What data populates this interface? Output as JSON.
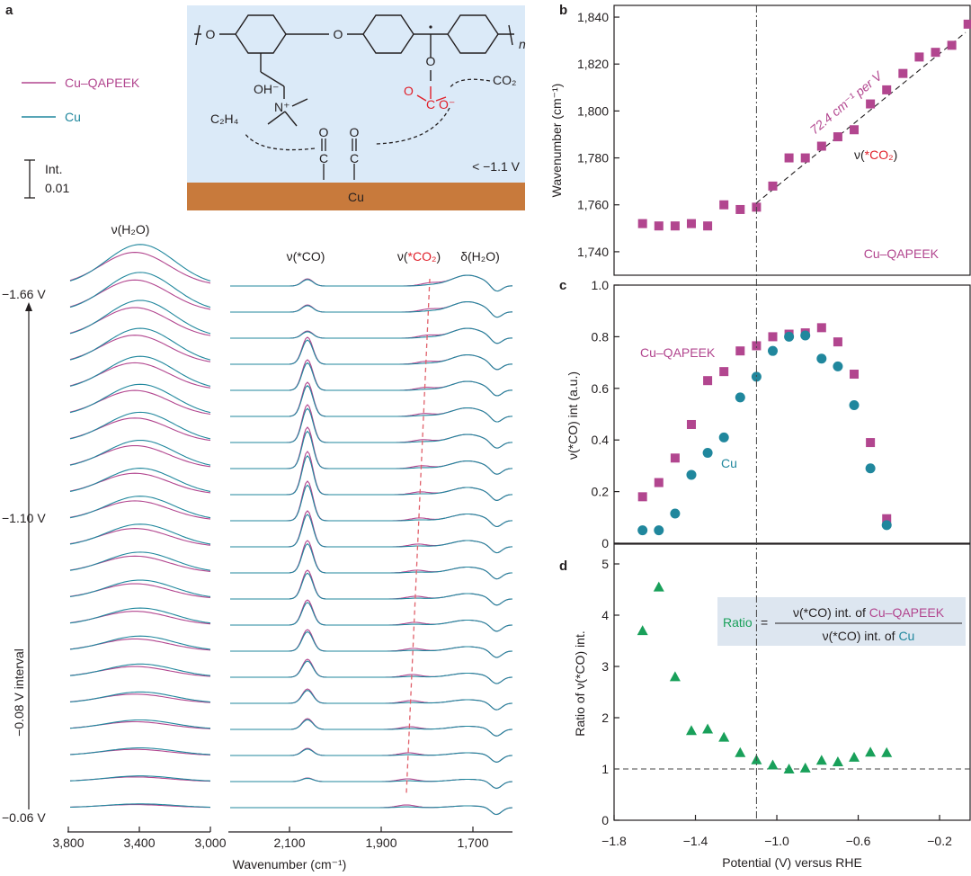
{
  "colors": {
    "cu_qapeek": "#b2468f",
    "cu": "#20879d",
    "ratio": "#19a05a",
    "co2_red": "#e0202a",
    "dashed": "#e0606a",
    "schematic_bg": "#dbeaf8",
    "electrode": "#c87a3c",
    "ink": "#231f20",
    "ratio_box_bg": "#dde6f0"
  },
  "panel_labels": {
    "a": "a",
    "b": "b",
    "c": "c",
    "d": "d"
  },
  "panel_a": {
    "legend": [
      "Cu–QAPEEK",
      "Cu"
    ],
    "scale_bar_label": "Int.",
    "scale_bar_value": "0.01",
    "potential_labels": [
      "−1.66 V",
      "−1.10 V",
      "−0.06 V"
    ],
    "interval_label": "−0.08 V interval",
    "xlabel": "Wavenumber (cm⁻¹)",
    "left_ticks": [
      "3,800",
      "3,400",
      "3,000"
    ],
    "right_ticks": [
      "2,100",
      "1,900",
      "1,700"
    ],
    "bands": {
      "water": "ν(H₂O)",
      "co": "ν(*CO)",
      "co2_prefix": "ν(",
      "co2_species": "*CO₂",
      "co2_suffix": ")",
      "bend": "δ(H₂O)"
    },
    "spectra_count": 21,
    "schematic": {
      "oh": "OH⁻",
      "nplus": "N⁺",
      "c2h4": "C₂H₄",
      "co2": "CO₂",
      "n": "n",
      "potential": "< −1.1 V",
      "electrode": "Cu",
      "o": "O",
      "c": "C",
      "ominus": "O⁻"
    }
  },
  "chart_data": [
    {
      "panel": "b",
      "type": "scatter",
      "title": "",
      "xlabel": "",
      "ylabel": "Wavenumber (cm⁻¹)",
      "xlim": [
        -1.8,
        -0.05
      ],
      "ylim": [
        1730,
        1845
      ],
      "yticks": [
        "1,740",
        "1,760",
        "1,780",
        "1,800",
        "1,820",
        "1,840"
      ],
      "series": [
        {
          "name": "Cu–QAPEEK",
          "x": [
            -1.66,
            -1.58,
            -1.5,
            -1.42,
            -1.34,
            -1.26,
            -1.18,
            -1.1,
            -1.02,
            -0.94,
            -0.86,
            -0.78,
            -0.7,
            -0.62,
            -0.54,
            -0.46,
            -0.38,
            -0.3,
            -0.22,
            -0.14,
            -0.06
          ],
          "y": [
            1752,
            1751,
            1751,
            1752,
            1751,
            1760,
            1758,
            1759,
            1768,
            1780,
            1780,
            1785,
            1789,
            1792,
            1803,
            1809,
            1816,
            1823,
            1825,
            1828,
            1837
          ]
        }
      ],
      "annotations": {
        "slope": "72.4 cm⁻¹ per V",
        "species_prefix": "ν(",
        "species": "*CO₂",
        "species_suffix": ")",
        "sample": "Cu–QAPEEK"
      }
    },
    {
      "panel": "c",
      "type": "scatter",
      "title": "",
      "xlabel": "",
      "ylabel": "ν(*CO) int (a.u.)",
      "xlim": [
        -1.8,
        -0.05
      ],
      "ylim": [
        0,
        1.0
      ],
      "yticks": [
        "0",
        "0.2",
        "0.4",
        "0.6",
        "0.8",
        "1.0"
      ],
      "series": [
        {
          "name": "Cu–QAPEEK",
          "x": [
            -1.66,
            -1.58,
            -1.5,
            -1.42,
            -1.34,
            -1.26,
            -1.18,
            -1.1,
            -1.02,
            -0.94,
            -0.86,
            -0.78,
            -0.7,
            -0.62,
            -0.54,
            -0.46
          ],
          "y": [
            0.18,
            0.235,
            0.33,
            0.46,
            0.63,
            0.665,
            0.745,
            0.765,
            0.8,
            0.81,
            0.815,
            0.835,
            0.78,
            0.655,
            0.39,
            0.095
          ]
        },
        {
          "name": "Cu",
          "x": [
            -1.66,
            -1.58,
            -1.5,
            -1.42,
            -1.34,
            -1.26,
            -1.18,
            -1.1,
            -1.02,
            -0.94,
            -0.86,
            -0.78,
            -0.7,
            -0.62,
            -0.54,
            -0.46
          ],
          "y": [
            0.05,
            0.05,
            0.115,
            0.265,
            0.35,
            0.41,
            0.565,
            0.645,
            0.745,
            0.8,
            0.805,
            0.715,
            0.685,
            0.535,
            0.29,
            0.07
          ]
        }
      ]
    },
    {
      "panel": "d",
      "type": "scatter",
      "title": "",
      "xlabel": "Potential (V) versus RHE",
      "ylabel": "Ratio of ν(*CO) int.",
      "xlim": [
        -1.8,
        -0.05
      ],
      "ylim": [
        0,
        5
      ],
      "xticks": [
        "−1.8",
        "−1.4",
        "−1.0",
        "−0.6",
        "−0.2"
      ],
      "yticks": [
        "0",
        "1",
        "2",
        "3",
        "4",
        "5"
      ],
      "series": [
        {
          "name": "Ratio",
          "x": [
            -1.66,
            -1.58,
            -1.5,
            -1.42,
            -1.34,
            -1.26,
            -1.18,
            -1.1,
            -1.02,
            -0.94,
            -0.86,
            -0.78,
            -0.7,
            -0.62,
            -0.54,
            -0.46
          ],
          "y": [
            3.7,
            4.55,
            2.8,
            1.75,
            1.78,
            1.62,
            1.32,
            1.18,
            1.08,
            1.0,
            1.02,
            1.17,
            1.14,
            1.23,
            1.33,
            1.32
          ]
        }
      ],
      "reference_line_y": 1,
      "formula": {
        "ratio": "Ratio",
        "equals": "=",
        "numerator_prefix": "ν(*CO) int. of ",
        "numerator_sample": "Cu–QAPEEK",
        "denominator_prefix": "ν(*CO) int. of ",
        "denominator_sample": "Cu"
      }
    }
  ]
}
